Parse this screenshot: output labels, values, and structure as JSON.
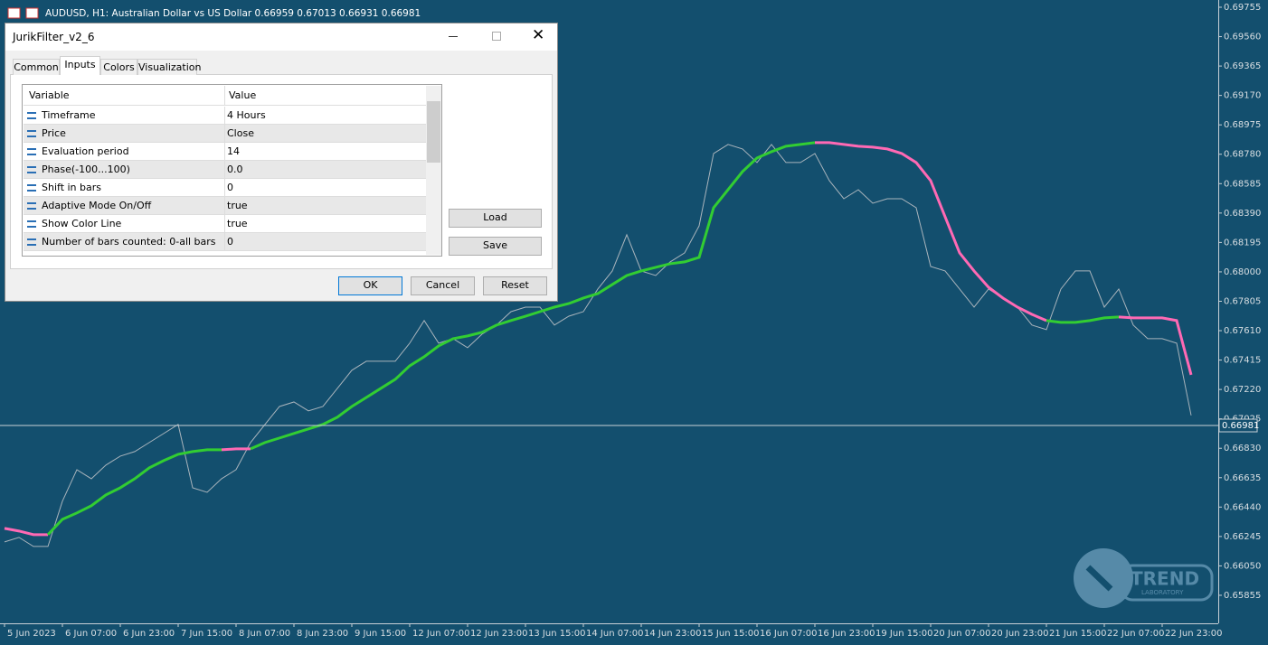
{
  "window": {
    "title": "AUDUSD, H1:  Australian Dollar vs US Dollar  0.66959 0.67013 0.66931 0.66981"
  },
  "chart_data": {
    "type": "line",
    "ylim": [
      0.65681,
      0.69803
    ],
    "yticks": [
      0.69755,
      {
        "value": 0.6956,
        "label": "0.69560"
      },
      0.69365,
      {
        "value": 0.6917,
        "label": "0.69170"
      },
      0.68975,
      {
        "value": 0.6878,
        "label": "0.68780"
      },
      0.68585,
      {
        "value": 0.6839,
        "label": "0.68390"
      },
      0.68195,
      {
        "value": 0.68,
        "label": "0.68000"
      },
      0.67805,
      {
        "value": 0.6761,
        "label": "0.67610"
      },
      0.67415,
      {
        "value": 0.6722,
        "label": "0.67220"
      },
      0.67025,
      {
        "value": 0.6683,
        "label": "0.66830"
      },
      0.66635,
      {
        "value": 0.6644,
        "label": "0.66440"
      },
      0.66245,
      {
        "value": 0.6605,
        "label": "0.66050"
      },
      0.65855
    ],
    "categories": [
      "5 Jun 2023",
      "6 Jun 07:00",
      "6 Jun 23:00",
      "7 Jun 15:00",
      "8 Jun 07:00",
      "8 Jun 23:00",
      "9 Jun 15:00",
      "12 Jun 07:00",
      "12 Jun 23:00",
      "13 Jun 15:00",
      "14 Jun 07:00",
      "14 Jun 23:00",
      "15 Jun 15:00",
      "16 Jun 07:00",
      "16 Jun 23:00",
      "19 Jun 15:00",
      "20 Jun 07:00",
      "20 Jun 23:00",
      "21 Jun 15:00",
      "22 Jun 07:00",
      "22 Jun 23:00"
    ],
    "price": {
      "color": "#a9b4bc",
      "values": [
        0.66209,
        0.66239,
        0.66179,
        0.66179,
        0.66479,
        0.66688,
        0.66628,
        0.66718,
        0.66778,
        0.66808,
        0.66868,
        0.66928,
        0.66988,
        0.66568,
        0.66538,
        0.66628,
        0.66688,
        0.66868,
        0.66988,
        0.67107,
        0.67137,
        0.67078,
        0.67107,
        0.67227,
        0.67347,
        0.67407,
        0.67407,
        0.67407,
        0.67527,
        0.67677,
        0.67527,
        0.67557,
        0.67497,
        0.67587,
        0.67647,
        0.67736,
        0.67766,
        0.67766,
        0.67647,
        0.67706,
        0.67736,
        0.67886,
        0.68006,
        0.68246,
        0.68006,
        0.67976,
        0.68066,
        0.68126,
        0.68305,
        0.68785,
        0.68845,
        0.68815,
        0.68725,
        0.68845,
        0.68725,
        0.68725,
        0.68785,
        0.68605,
        0.68485,
        0.68545,
        0.68455,
        0.68485,
        0.68485,
        0.68425,
        0.68036,
        0.68006,
        0.67886,
        0.67766,
        0.67886,
        0.67826,
        0.67766,
        0.67647,
        0.67617,
        0.67886,
        0.68006,
        0.68006,
        0.67766,
        0.67886,
        0.67647,
        0.67557,
        0.67557,
        0.67527,
        0.67048
      ]
    },
    "filter_segments": [
      {
        "color": "#ff69b4",
        "values": [
          0.66299,
          0.66281,
          0.66257,
          0.66257
        ]
      },
      {
        "color": "#32cd32",
        "values": [
          0.66359,
          0.66401,
          0.66449,
          0.6652,
          0.66568,
          0.66628,
          0.667,
          0.66748,
          0.6679,
          0.66808,
          0.6682,
          0.6682
        ]
      },
      {
        "color": "#ff69b4",
        "values": [
          0.66826,
          0.66826
        ]
      },
      {
        "color": "#32cd32",
        "values": [
          0.66868,
          0.66898,
          0.66928,
          0.66958,
          0.66988,
          0.67036,
          0.67107,
          0.67167,
          0.67227,
          0.67287,
          0.67377,
          0.67437,
          0.67509,
          0.67557,
          0.67575,
          0.67599,
          0.67647,
          0.67677,
          0.67706,
          0.67736,
          0.67766,
          0.6779,
          0.67826,
          0.67856,
          0.67916,
          0.67976,
          0.68006,
          0.6803,
          0.68054,
          0.68066,
          0.68096,
          0.68425,
          0.68545,
          0.68665,
          0.68755,
          0.68797,
          0.68833,
          0.68845,
          0.68857
        ]
      },
      {
        "color": "#ff69b4",
        "values": [
          0.68857,
          0.68845,
          0.68833,
          0.68827,
          0.68815,
          0.68785,
          0.68725,
          0.68605,
          0.68365,
          0.68126,
          0.68006,
          0.67898,
          0.67826,
          0.67766,
          0.67718,
          0.67677
        ]
      },
      {
        "color": "#32cd32",
        "values": [
          0.67665,
          0.67665,
          0.67677,
          0.67695,
          0.67701
        ]
      },
      {
        "color": "#ff69b4",
        "values": [
          0.67695,
          0.67695,
          0.67695,
          0.67677,
          0.67317
        ]
      }
    ],
    "current_price": 0.66981
  },
  "dialog": {
    "title": "JurikFilter_v2_6",
    "tabs": [
      "Common",
      "Inputs",
      "Colors",
      "Visualization"
    ],
    "columns": [
      "Variable",
      "Value"
    ],
    "rows": [
      [
        "Timeframe",
        "4 Hours"
      ],
      [
        "Price",
        "Close"
      ],
      [
        "Evaluation period",
        "14"
      ],
      [
        "Phase(-100...100)",
        "0.0"
      ],
      [
        "Shift in bars",
        "0"
      ],
      [
        "Adaptive Mode On/Off",
        "true"
      ],
      [
        "Show Color Line",
        "true"
      ],
      [
        "Number of bars counted: 0-all bars",
        "0"
      ]
    ],
    "side_buttons": [
      "Load",
      "Save"
    ],
    "buttons": [
      "OK",
      "Cancel",
      "Reset"
    ]
  },
  "logo": {
    "name": "TREND",
    "sub": "LABORATORY"
  }
}
